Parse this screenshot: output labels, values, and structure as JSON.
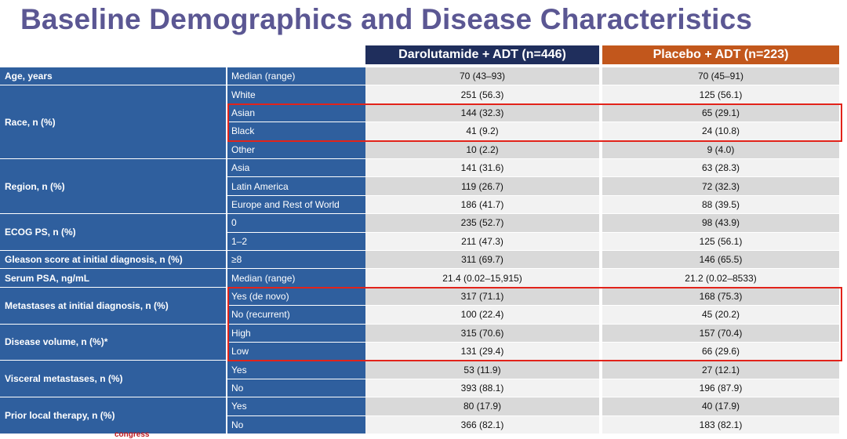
{
  "title": "Baseline Demographics and Disease Characteristics",
  "columns": {
    "darolutamide": "Darolutamide + ADT (n=446)",
    "placebo": "Placebo + ADT (n=223)"
  },
  "groups": [
    {
      "label": "Age, years",
      "rows": [
        {
          "sub": "Median (range)",
          "d": "70 (43–93)",
          "p": "70 (45–91)"
        }
      ]
    },
    {
      "label": "Race, n (%)",
      "rows": [
        {
          "sub": "White",
          "d": "251 (56.3)",
          "p": "125 (56.1)"
        },
        {
          "sub": "Asian",
          "d": "144 (32.3)",
          "p": "65 (29.1)"
        },
        {
          "sub": "Black",
          "d": "41 (9.2)",
          "p": "24 (10.8)"
        },
        {
          "sub": "Other",
          "d": "10 (2.2)",
          "p": "9 (4.0)"
        }
      ]
    },
    {
      "label": "Region, n (%)",
      "rows": [
        {
          "sub": "Asia",
          "d": "141 (31.6)",
          "p": "63 (28.3)"
        },
        {
          "sub": "Latin America",
          "d": "119 (26.7)",
          "p": "72 (32.3)"
        },
        {
          "sub": "Europe and Rest of World",
          "d": "186 (41.7)",
          "p": "88 (39.5)"
        }
      ]
    },
    {
      "label": "ECOG PS, n (%)",
      "rows": [
        {
          "sub": "0",
          "d": "235 (52.7)",
          "p": "98 (43.9)"
        },
        {
          "sub": "1–2",
          "d": "211 (47.3)",
          "p": "125 (56.1)"
        }
      ]
    },
    {
      "label": "Gleason score at initial diagnosis, n (%)",
      "rows": [
        {
          "sub": "≥8",
          "d": "311 (69.7)",
          "p": "146 (65.5)"
        }
      ]
    },
    {
      "label": "Serum PSA, ng/mL",
      "rows": [
        {
          "sub": "Median (range)",
          "d": "21.4 (0.02–15,915)",
          "p": "21.2 (0.02–8533)"
        }
      ]
    },
    {
      "label": "Metastases at initial diagnosis, n (%)",
      "rows": [
        {
          "sub": "Yes (de novo)",
          "d": "317 (71.1)",
          "p": "168 (75.3)"
        },
        {
          "sub": "No (recurrent)",
          "d": "100 (22.4)",
          "p": "45 (20.2)"
        }
      ]
    },
    {
      "label": "Disease volume, n (%)*",
      "rows": [
        {
          "sub": "High",
          "d": "315 (70.6)",
          "p": "157 (70.4)"
        },
        {
          "sub": "Low",
          "d": "131 (29.4)",
          "p": "66 (29.6)"
        }
      ]
    },
    {
      "label": "Visceral metastases, n (%)",
      "rows": [
        {
          "sub": "Yes",
          "d": "53 (11.9)",
          "p": "27 (12.1)"
        },
        {
          "sub": "No",
          "d": "393 (88.1)",
          "p": "196 (87.9)"
        }
      ]
    },
    {
      "label": "Prior local therapy, n (%)",
      "rows": [
        {
          "sub": "Yes",
          "d": "80 (17.9)",
          "p": "40 (17.9)"
        },
        {
          "sub": "No",
          "d": "366 (82.1)",
          "p": "183 (82.1)"
        }
      ]
    }
  ],
  "highlights": [
    [
      2,
      3
    ],
    [
      12,
      15
    ]
  ],
  "footer": "congress",
  "colors": {
    "title": "#5b5793",
    "header_darolutamide": "#1f2e5c",
    "header_placebo": "#c2571c",
    "label_bg": "#2f5f9e",
    "row_shade": "#d9d9d9",
    "row_plain": "#f2f2f2",
    "highlight": "#e2231a"
  }
}
